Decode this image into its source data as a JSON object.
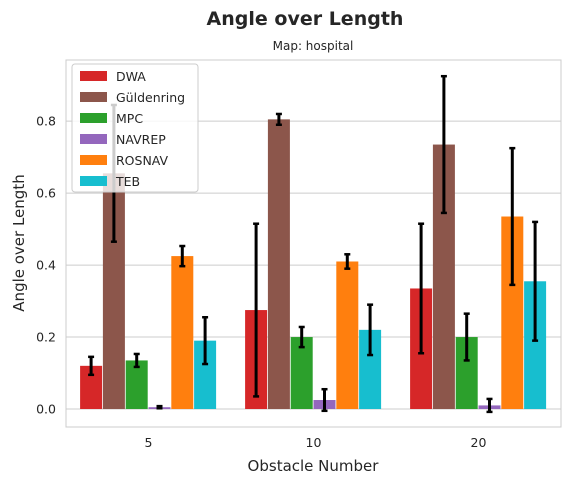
{
  "chart_data": {
    "type": "bar",
    "title": "Angle over Length",
    "subtitle": "Map: hospital",
    "xlabel": "Obstacle Number",
    "ylabel": "Angle over Length",
    "categories": [
      "5",
      "10",
      "20"
    ],
    "ylim": [
      -0.05,
      0.97
    ],
    "yticks": [
      0.0,
      0.2,
      0.4,
      0.6,
      0.8
    ],
    "ytick_labels": [
      "0.0",
      "0.2",
      "0.4",
      "0.6",
      "0.8"
    ],
    "grid": "horizontal",
    "legend_position": "top-left",
    "series": [
      {
        "name": "DWA",
        "color": "#d62728",
        "values": [
          0.12,
          0.275,
          0.335
        ],
        "errors": [
          0.025,
          0.24,
          0.18
        ]
      },
      {
        "name": "Güldenring",
        "color": "#8c564b",
        "values": [
          0.655,
          0.805,
          0.735
        ],
        "errors": [
          0.19,
          0.015,
          0.19
        ]
      },
      {
        "name": "MPC",
        "color": "#2ca02c",
        "values": [
          0.135,
          0.2,
          0.2
        ],
        "errors": [
          0.018,
          0.028,
          0.065
        ]
      },
      {
        "name": "NAVREP",
        "color": "#9467bd",
        "values": [
          0.005,
          0.025,
          0.01
        ],
        "errors": [
          0.003,
          0.03,
          0.018
        ]
      },
      {
        "name": "ROSNAV",
        "color": "#ff7f0e",
        "values": [
          0.425,
          0.41,
          0.535
        ],
        "errors": [
          0.028,
          0.02,
          0.19
        ]
      },
      {
        "name": "TEB",
        "color": "#17becf",
        "values": [
          0.19,
          0.22,
          0.355
        ],
        "errors": [
          0.065,
          0.07,
          0.165
        ]
      }
    ]
  }
}
